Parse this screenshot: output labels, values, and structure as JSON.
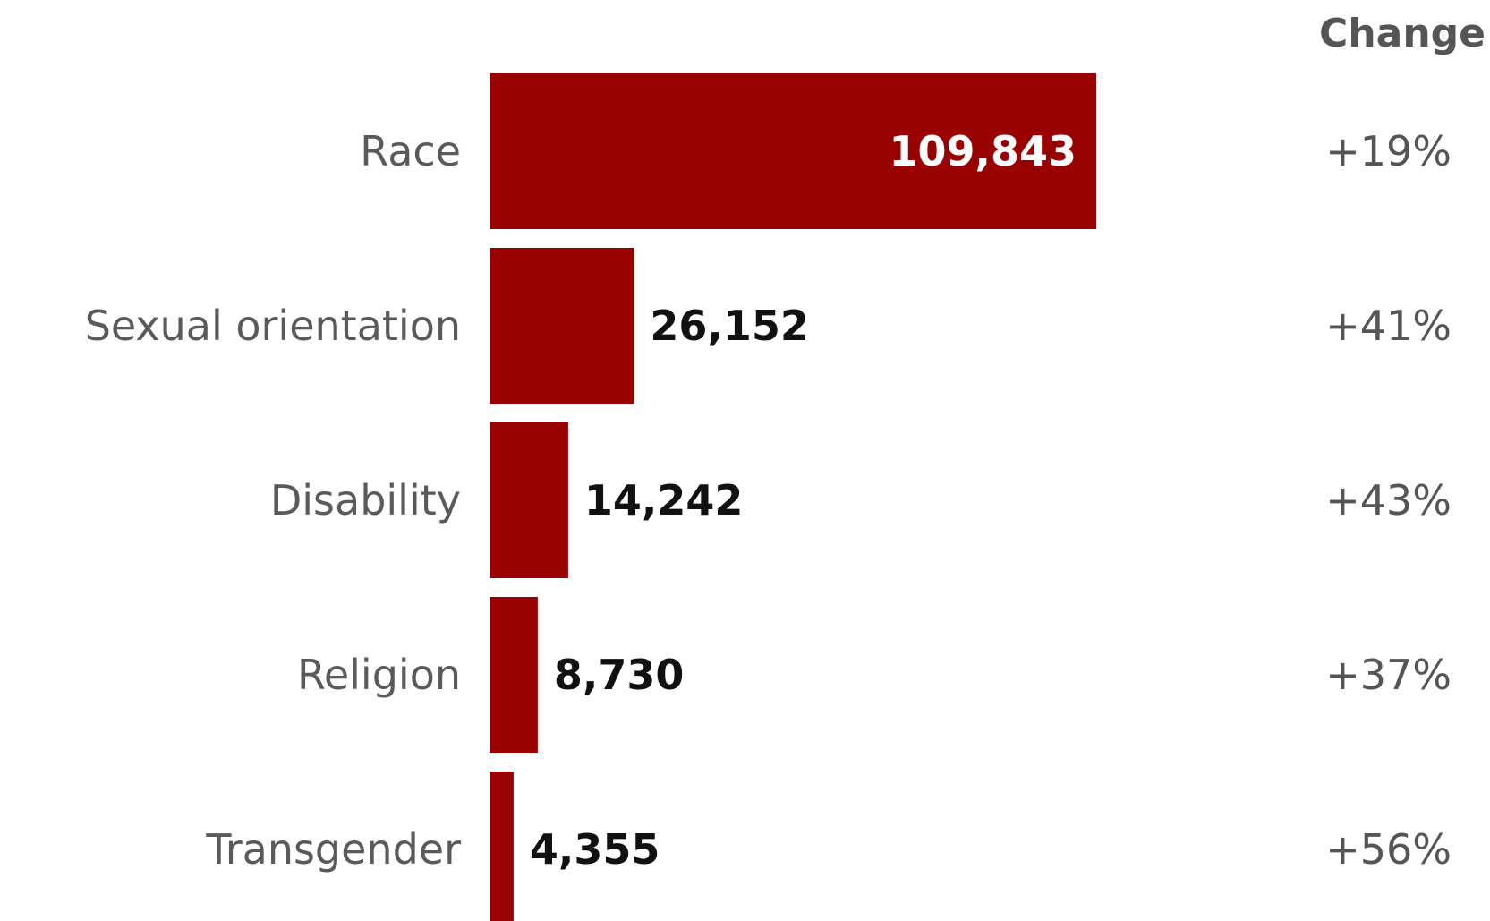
{
  "chart_data": {
    "type": "bar",
    "orientation": "horizontal",
    "categories": [
      "Race",
      "Sexual orientation",
      "Disability",
      "Religion",
      "Transgender"
    ],
    "values": [
      109843,
      26152,
      14242,
      8730,
      4355
    ],
    "value_labels": [
      "109,843",
      "26,152",
      "14,242",
      "8,730",
      "4,355"
    ],
    "change_header": "Change",
    "changes": [
      "+19%",
      "+41%",
      "+43%",
      "+37%",
      "+56%"
    ],
    "bar_color": "#990000",
    "value_label_color_inside": "#ffffff",
    "value_label_color_outside": "#111111",
    "xlim": [
      0,
      109843
    ],
    "grid": false
  }
}
